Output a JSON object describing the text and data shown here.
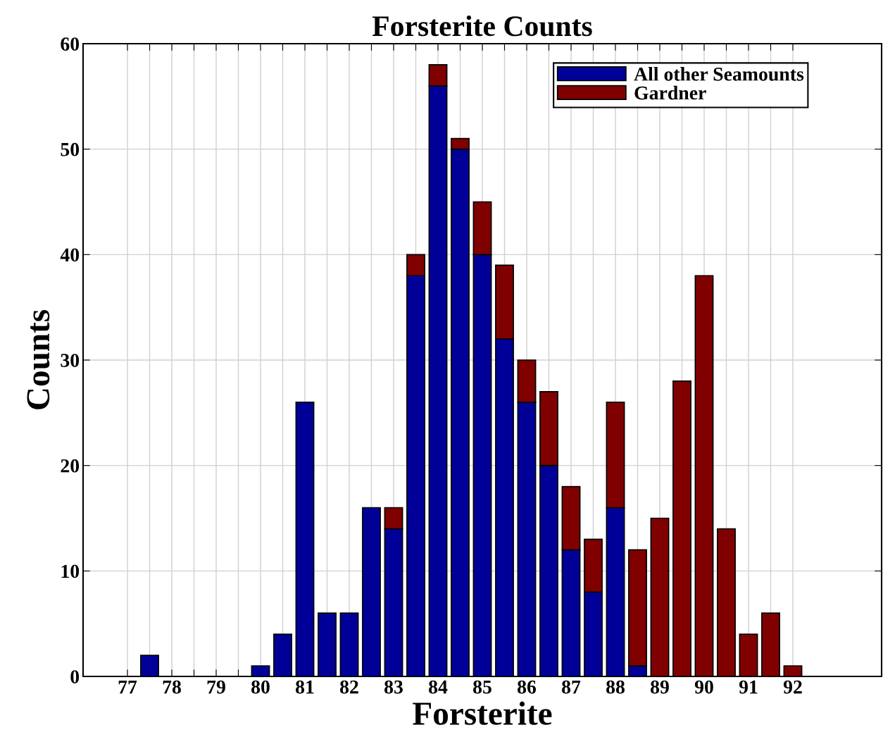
{
  "chart_data": {
    "type": "bar",
    "stacked": true,
    "title": "Forsterite Counts",
    "xlabel": "Forsterite",
    "ylabel": "Counts",
    "x": [
      77.5,
      80,
      80.5,
      81,
      81.5,
      82,
      82.5,
      83,
      83.5,
      84,
      84.5,
      85,
      85.5,
      86,
      86.5,
      87,
      87.5,
      88,
      88.5,
      89,
      89.5,
      90,
      90.5,
      91,
      91.5,
      92
    ],
    "series": [
      {
        "name": "All other Seamounts",
        "color": "#000099",
        "values": [
          2,
          1,
          4,
          26,
          6,
          6,
          16,
          14,
          38,
          56,
          50,
          40,
          32,
          26,
          20,
          12,
          8,
          16,
          1,
          null,
          null,
          null,
          null,
          null,
          null,
          null
        ]
      },
      {
        "name": "Gardner",
        "color": "#800000",
        "values": [
          null,
          null,
          null,
          null,
          null,
          null,
          null,
          2,
          2,
          2,
          1,
          5,
          7,
          4,
          7,
          6,
          5,
          10,
          11,
          15,
          28,
          38,
          14,
          4,
          6,
          1
        ]
      }
    ],
    "xlim": [
      76,
      94
    ],
    "ylim": [
      0,
      60
    ],
    "xticks": [
      77,
      {
        "value": 77.5,
        "label": null
      },
      78,
      {
        "value": 78.5,
        "label": null
      },
      79,
      {
        "value": 79.5,
        "label": null
      },
      80,
      {
        "value": 80.5,
        "label": null
      },
      81,
      {
        "value": 81.5,
        "label": null
      },
      82,
      {
        "value": 82.5,
        "label": null
      },
      83,
      {
        "value": 83.5,
        "label": null
      },
      84,
      {
        "value": 84.5,
        "label": null
      },
      85,
      {
        "value": 85.5,
        "label": null
      },
      86,
      {
        "value": 86.5,
        "label": null
      },
      87,
      {
        "value": 87.5,
        "label": null
      },
      88,
      {
        "value": 88.5,
        "label": null
      },
      89,
      {
        "value": 89.5,
        "label": null
      },
      90,
      {
        "value": 90.5,
        "label": null
      },
      91,
      {
        "value": 91.5,
        "label": null
      },
      92
    ],
    "yticks": [
      0,
      10,
      20,
      30,
      40,
      50,
      60
    ],
    "grid": true,
    "legend": "top right"
  }
}
